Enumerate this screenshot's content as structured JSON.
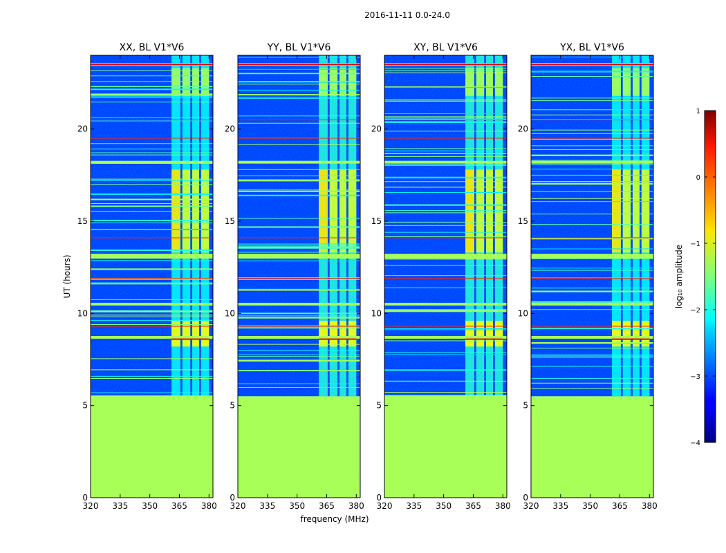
{
  "suptitle": "2016-11-11 0.0-24.0",
  "chart_data": {
    "type": "heatmap",
    "panels": [
      {
        "title": "XX, BL V1*V6"
      },
      {
        "title": "YY, BL V1*V6"
      },
      {
        "title": "XY, BL V1*V6"
      },
      {
        "title": "YX, BL V1*V6"
      }
    ],
    "xlabel": "frequency (MHz)",
    "ylabel": "UT (hours)",
    "xlim": [
      320,
      382
    ],
    "ylim": [
      0,
      24
    ],
    "xticks": [
      320,
      335,
      350,
      365,
      380
    ],
    "yticks": [
      0,
      5,
      10,
      15,
      20
    ],
    "colorbar": {
      "label": "log₁₀ amplitude",
      "range": [
        -4,
        1
      ],
      "ticks": [
        "1",
        "0",
        "−1",
        "−2",
        "−3",
        "−4"
      ],
      "ticks_values": [
        1,
        0,
        -1,
        -2,
        -3,
        -4
      ],
      "colormap": "jet"
    },
    "features": {
      "flagged_ut_range": [
        0,
        5.5
      ],
      "flagged_level": -1.3,
      "background_level": -3.2,
      "rfi_band_mhz": [
        361,
        380
      ],
      "rfi_subbands_mhz": [
        [
          361,
          365.5
        ],
        [
          366.5,
          370.5
        ],
        [
          371.5,
          375
        ],
        [
          376,
          380
        ]
      ],
      "broadband_rfi_ut": [
        8.7,
        10.5,
        13.1,
        18.2,
        23.5
      ]
    },
    "colors": {
      "flagged": "#99ff55",
      "background": "#1a3cff"
    }
  }
}
